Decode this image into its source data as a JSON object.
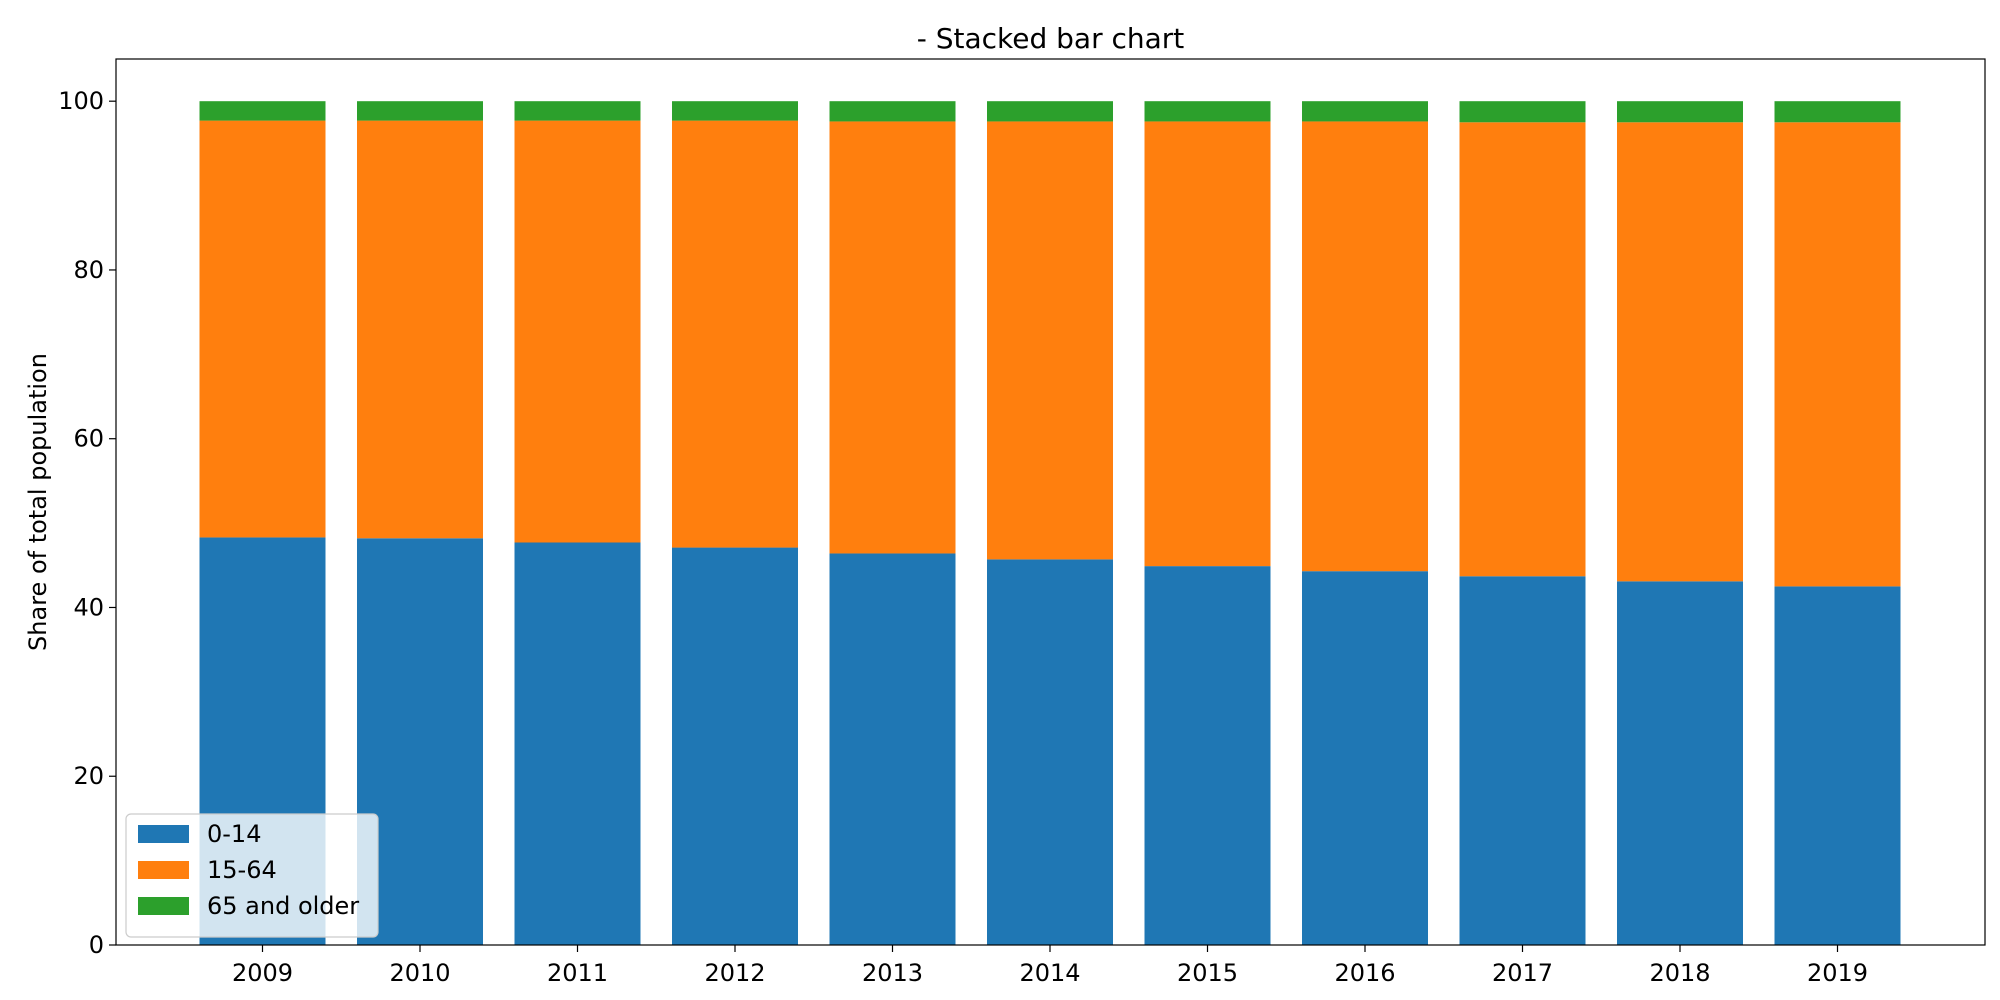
{
  "chart_data": {
    "type": "bar",
    "stacked": true,
    "title": "- Stacked bar chart",
    "xlabel": "",
    "ylabel": "Share of total population",
    "categories": [
      "2009",
      "2010",
      "2011",
      "2012",
      "2013",
      "2014",
      "2015",
      "2016",
      "2017",
      "2018",
      "2019"
    ],
    "series": [
      {
        "name": "0-14",
        "color": "#1f77b4",
        "values": [
          48.3,
          48.2,
          47.7,
          47.1,
          46.4,
          45.7,
          44.9,
          44.3,
          43.7,
          43.1,
          42.5
        ]
      },
      {
        "name": "15-64",
        "color": "#ff7f0e",
        "values": [
          49.4,
          49.5,
          50.0,
          50.6,
          51.2,
          51.9,
          52.7,
          53.3,
          53.8,
          54.4,
          55.0
        ]
      },
      {
        "name": "65 and older",
        "color": "#2ca02c",
        "values": [
          2.3,
          2.3,
          2.3,
          2.3,
          2.4,
          2.4,
          2.4,
          2.4,
          2.5,
          2.5,
          2.5
        ]
      }
    ],
    "ylim": [
      0,
      105
    ],
    "yticks": [
      0,
      20,
      40,
      60,
      80,
      100
    ],
    "grid": false,
    "legend_position": "lower-left"
  }
}
